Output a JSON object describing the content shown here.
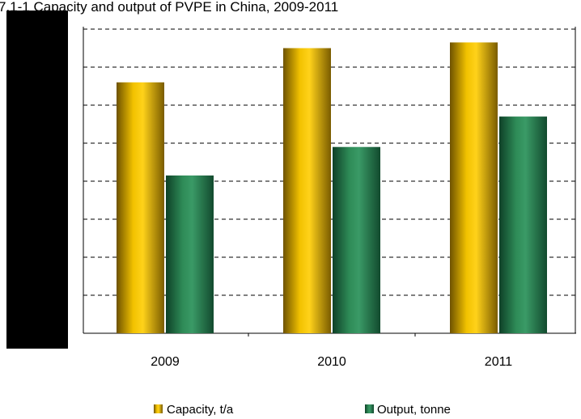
{
  "chart_data": {
    "type": "bar",
    "title": "7.1-1 Capacity and output of PVPE in China, 2009-2011",
    "categories": [
      "2009",
      "2010",
      "2011"
    ],
    "series": [
      {
        "name": "Capacity, t/a",
        "values": [
          6.6,
          7.5,
          7.65
        ]
      },
      {
        "name": "Output, tonne",
        "values": [
          4.15,
          4.9,
          5.7
        ]
      }
    ],
    "ylim": [
      0,
      8
    ],
    "grid": true,
    "legend": "bottom",
    "colors": {
      "capacity": "#f2c200",
      "capacity_dark": "#6e5200",
      "output": "#2e8b57",
      "output_dark": "#0e4027",
      "axis_panel": "#000000"
    }
  }
}
